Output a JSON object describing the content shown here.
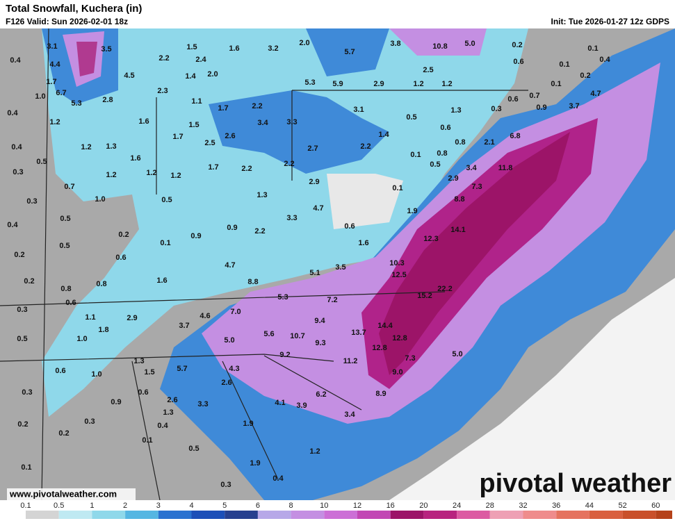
{
  "header": {
    "title": "Total Snowfall, Kuchera (in)",
    "valid": "F126 Valid: Sun 2026-02-01 18z",
    "init": "Init: Tue 2026-01-27 12z GDPS"
  },
  "map": {
    "points": [
      "3.1",
      "3.5",
      "4.4",
      "0.4",
      "4.5",
      "2.2",
      "1.5",
      "2.4",
      "1.4",
      "2.0",
      "1.6",
      "3.2",
      "2.0",
      "5.7",
      "3.8",
      "10.8",
      "5.0",
      "0.2",
      "0.1",
      "0.6",
      "0.1",
      "0.4",
      "2.5",
      "5.3",
      "5.9",
      "2.9",
      "1.2",
      "1.2",
      "0.2",
      "1.7",
      "6.7",
      "1.0",
      "5.3",
      "2.8",
      "2.3",
      "1.1",
      "1.7",
      "2.2",
      "3.1",
      "1.3",
      "0.3",
      "0.6",
      "0.7",
      "0.1",
      "4.7",
      "0.4",
      "1.2",
      "1.6",
      "1.5",
      "3.4",
      "3.3",
      "0.5",
      "0.6",
      "0.9",
      "3.7",
      "1.4",
      "0.4",
      "0.5",
      "1.2",
      "1.3",
      "1.7",
      "2.5",
      "2.6",
      "2.7",
      "2.2",
      "0.1",
      "0.8",
      "0.8",
      "2.1",
      "6.8",
      "1.6",
      "1.2",
      "1.2",
      "1.7",
      "2.2",
      "2.2",
      "0.5",
      "3.4",
      "11.8",
      "0.3",
      "1.2",
      "0.7",
      "2.9",
      "0.1",
      "2.9",
      "7.3",
      "1.0",
      "0.5",
      "1.3",
      "0.3",
      "0.5",
      "4.7",
      "3.3",
      "1.9",
      "8.8",
      "0.4",
      "0.2",
      "0.9",
      "2.2",
      "0.6",
      "14.1",
      "0.9",
      "0.1",
      "0.5",
      "1.6",
      "12.3",
      "0.2",
      "0.6",
      "4.7",
      "3.5",
      "10.3",
      "12.5",
      "5.1",
      "0.2",
      "0.8",
      "0.8",
      "1.6",
      "8.8",
      "22.2",
      "15.2",
      "5.3",
      "7.2",
      "0.6",
      "0.3",
      "7.0",
      "4.6",
      "1.1",
      "2.9",
      "9.4",
      "14.4",
      "3.7",
      "1.8",
      "5.6",
      "10.7",
      "13.7",
      "0.5",
      "1.0",
      "5.0",
      "12.8",
      "9.3",
      "12.8",
      "5.0",
      "9.2",
      "11.2",
      "7.3",
      "1.3",
      "0.6",
      "1.0",
      "1.5",
      "5.7",
      "4.3",
      "9.0",
      "2.6",
      "0.3",
      "0.6",
      "6.2",
      "8.9",
      "2.6",
      "0.9",
      "3.3",
      "4.1",
      "3.9",
      "1.3",
      "3.4",
      "0.3",
      "0.2",
      "0.4",
      "1.9",
      "0.2",
      "0.1",
      "0.5",
      "1.2",
      "1.9",
      "0.1",
      "0.4",
      "0.3"
    ],
    "website": "www.pivotalweather.com",
    "brand": "pivotal weather"
  },
  "legend": {
    "levels": [
      0.1,
      0.5,
      1,
      2,
      3,
      4,
      5,
      6,
      8,
      10,
      12,
      16,
      20,
      24,
      28,
      32,
      36,
      44,
      52,
      60
    ],
    "colors": [
      "#d4d4d4",
      "#bfe9f2",
      "#8fd8ea",
      "#55b6e2",
      "#2a72d0",
      "#1c4fb8",
      "#27408f",
      "#b7a8e8",
      "#c48fe2",
      "#cc6fd6",
      "#c247b4",
      "#9c1468",
      "#b8237f",
      "#dc5aa2",
      "#eea0b4",
      "#ef8c8c",
      "#e5735f",
      "#d9603f",
      "#c9502a",
      "#b5421a"
    ]
  }
}
